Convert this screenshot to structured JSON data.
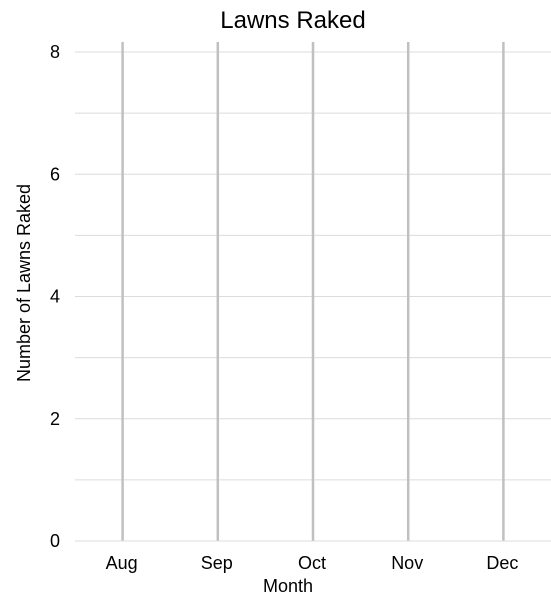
{
  "chart_data": {
    "type": "bar",
    "title": "Lawns Raked",
    "xlabel": "Month",
    "ylabel": "Number of Lawns Raked",
    "categories": [
      "Aug",
      "Sep",
      "Oct",
      "Nov",
      "Dec"
    ],
    "values": [
      0,
      0,
      0,
      0,
      0
    ],
    "ylim": [
      0,
      8
    ],
    "yticks": [
      0,
      2,
      4,
      6,
      8
    ],
    "grid": true,
    "colors": {
      "grid": "#dcdcdc",
      "bar_guide": "#c0c0c0",
      "text": "#000000",
      "axis": "#888888"
    }
  }
}
